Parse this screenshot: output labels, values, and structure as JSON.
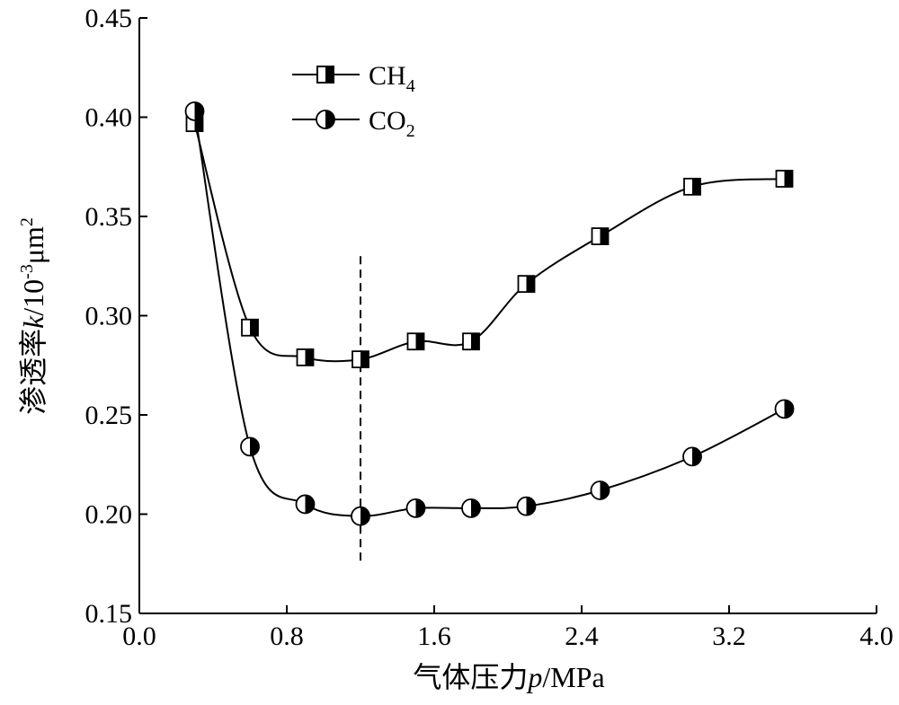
{
  "chart_data": {
    "type": "line",
    "xlabel": {
      "prefix": "气体压力",
      "var": "p",
      "suffix": "/MPa"
    },
    "ylabel": {
      "prefix": "渗透率",
      "var": "k",
      "suffix": "/10",
      "exp": "-3",
      "unit": "μm",
      "unit_exp": "2"
    },
    "xlim": [
      0.0,
      4.0
    ],
    "ylim": [
      0.15,
      0.45
    ],
    "xticks": [
      0.0,
      0.8,
      1.6,
      2.4,
      3.2,
      4.0
    ],
    "xtick_labels": [
      "0.0",
      "0.8",
      "1.6",
      "2.4",
      "3.2",
      "4.0"
    ],
    "yticks": [
      0.15,
      0.2,
      0.25,
      0.3,
      0.35,
      0.4,
      0.45
    ],
    "ytick_labels": [
      "0.15",
      "0.20",
      "0.25",
      "0.30",
      "0.35",
      "0.40",
      "0.45"
    ],
    "grid": false,
    "legend": {
      "placement": "top-left",
      "entries": [
        {
          "base": "CH",
          "sub": "4",
          "marker": "half-filled-square"
        },
        {
          "base": "CO",
          "sub": "2",
          "marker": "half-filled-circle"
        }
      ]
    },
    "series": [
      {
        "marker": "half-filled-square",
        "x": [
          0.3,
          0.6,
          0.9,
          1.2,
          1.5,
          1.8,
          2.1,
          2.5,
          3.0,
          3.5
        ],
        "y": [
          0.397,
          0.294,
          0.279,
          0.278,
          0.287,
          0.287,
          0.316,
          0.34,
          0.365,
          0.369
        ]
      },
      {
        "marker": "half-filled-circle",
        "x": [
          0.3,
          0.6,
          0.9,
          1.2,
          1.5,
          1.8,
          2.1,
          2.5,
          3.0,
          3.5
        ],
        "y": [
          0.403,
          0.234,
          0.205,
          0.199,
          0.203,
          0.203,
          0.204,
          0.212,
          0.229,
          0.253
        ]
      }
    ],
    "reference_line": {
      "type": "vertical",
      "style": "dashed",
      "x": 1.2,
      "y_from": 0.175,
      "y_to": 0.33
    }
  }
}
